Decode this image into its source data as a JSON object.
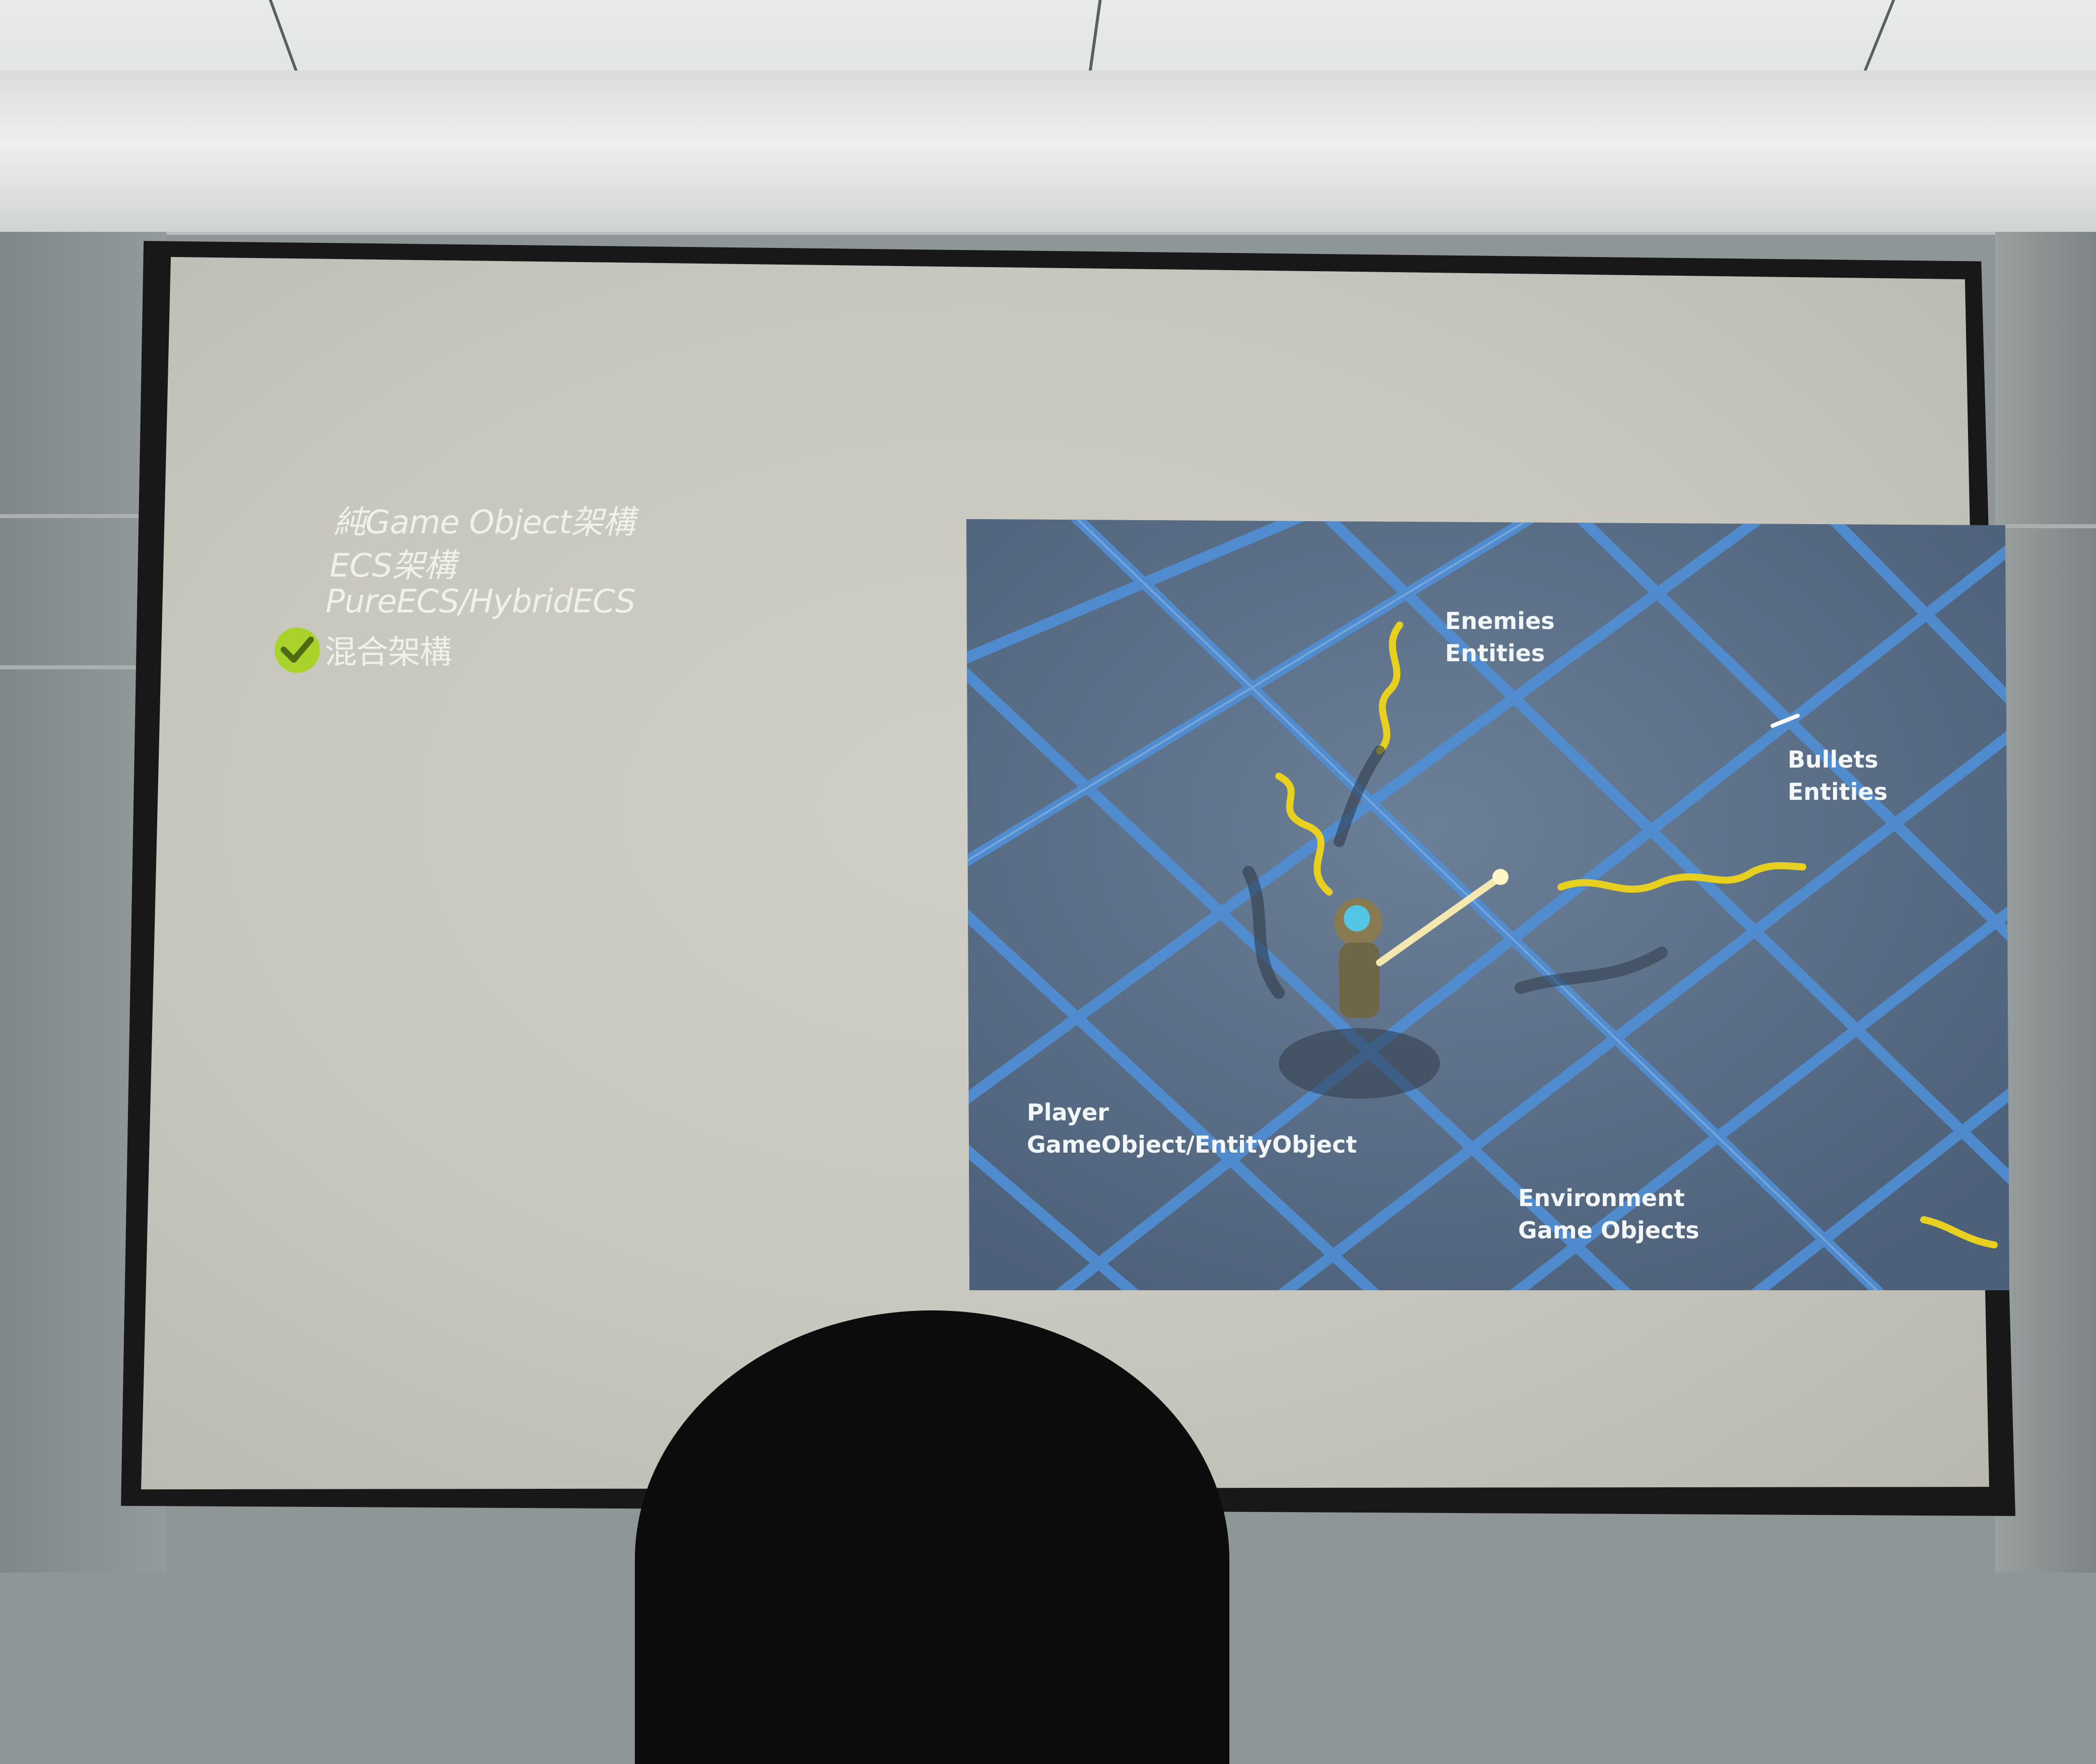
{
  "slide": {
    "options": [
      "純Game Object架構",
      "ECS架構",
      "PureECS/HybridECS",
      "混合架構"
    ],
    "selected_option": "混合架構",
    "selected_icon": "check-icon",
    "colors": {
      "slide_background": "#c7c7bd",
      "text": "#eef3ea",
      "check": "#a9d22a",
      "demo_floor": "#5a6e86",
      "grid_lines": "#4f8fd6",
      "enemy_trails": "#e8d020"
    }
  },
  "demo": {
    "labels": {
      "enemies": [
        "Enemies",
        "Entities"
      ],
      "bullets": [
        "Bullets",
        "Entities"
      ],
      "player": [
        "Player",
        "GameObject/EntityObject"
      ],
      "environment": [
        "Environment",
        "Game Objects"
      ]
    }
  }
}
